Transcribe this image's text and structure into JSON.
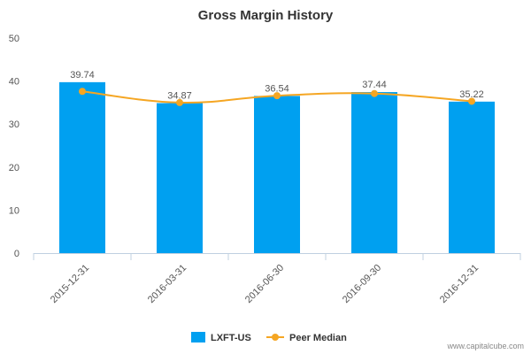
{
  "chart_data": {
    "type": "bar",
    "title": "Gross Margin History",
    "categories": [
      "2015-12-31",
      "2016-03-31",
      "2016-06-30",
      "2016-09-30",
      "2016-12-31"
    ],
    "series": [
      {
        "name": "LXFT-US",
        "type": "bar",
        "color": "#00a0f0",
        "values": [
          39.74,
          34.87,
          36.54,
          37.44,
          35.22
        ]
      },
      {
        "name": "Peer Median",
        "type": "line",
        "color": "#f5a623",
        "values": [
          37.6,
          35.0,
          36.6,
          37.1,
          35.3
        ]
      }
    ],
    "data_labels": [
      "39.74",
      "34.87",
      "36.54",
      "37.44",
      "35.22"
    ],
    "ylim": [
      0,
      50
    ],
    "yticks": [
      0,
      10,
      20,
      30,
      40,
      50
    ],
    "grid": false,
    "legend_position": "bottom-center"
  },
  "credit": "www.capitalcube.com"
}
